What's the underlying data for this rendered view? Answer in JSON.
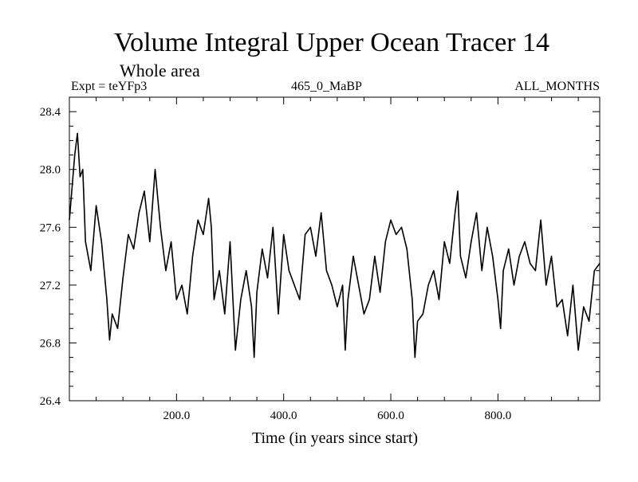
{
  "chart_data": {
    "type": "line",
    "title": "Volume Integral Upper Ocean Tracer 14",
    "subtitle": "Whole area",
    "experiment": "Expt = teYFp3",
    "period": "465_0_MaBP",
    "months": "ALL_MONTHS",
    "xlabel": "Time (in years since start)",
    "ylabel": "",
    "xlim": [
      0,
      990
    ],
    "ylim": [
      26.4,
      28.5
    ],
    "grid": false,
    "legend": "none",
    "x_ticks": [
      200,
      400,
      600,
      800
    ],
    "x_tick_labels": [
      "200.0",
      "400.0",
      "600.0",
      "800.0"
    ],
    "y_ticks": [
      26.4,
      26.8,
      27.2,
      27.6,
      28.0,
      28.4
    ],
    "y_tick_labels": [
      "26.4",
      "26.8",
      "27.2",
      "27.6",
      "28.0",
      "28.4"
    ],
    "series": [
      {
        "name": "Volume integral",
        "x": [
          0,
          10,
          15,
          20,
          25,
          30,
          40,
          50,
          60,
          70,
          75,
          80,
          90,
          100,
          110,
          120,
          130,
          140,
          150,
          160,
          170,
          180,
          190,
          200,
          210,
          220,
          230,
          240,
          250,
          260,
          265,
          270,
          280,
          290,
          300,
          310,
          320,
          330,
          340,
          345,
          350,
          360,
          370,
          380,
          390,
          400,
          410,
          420,
          430,
          440,
          450,
          460,
          470,
          480,
          490,
          500,
          510,
          515,
          520,
          530,
          540,
          550,
          560,
          570,
          580,
          590,
          600,
          610,
          620,
          630,
          640,
          645,
          650,
          660,
          670,
          680,
          690,
          700,
          710,
          720,
          725,
          730,
          740,
          750,
          760,
          770,
          780,
          790,
          800,
          805,
          810,
          820,
          830,
          840,
          850,
          860,
          870,
          880,
          890,
          900,
          910,
          920,
          930,
          940,
          950,
          960,
          970,
          980,
          990
        ],
        "values": [
          27.65,
          28.1,
          28.25,
          27.95,
          28.0,
          27.5,
          27.3,
          27.75,
          27.5,
          27.1,
          26.82,
          27.0,
          26.9,
          27.25,
          27.55,
          27.45,
          27.7,
          27.85,
          27.5,
          28.0,
          27.6,
          27.3,
          27.5,
          27.1,
          27.2,
          27.0,
          27.4,
          27.65,
          27.55,
          27.8,
          27.6,
          27.1,
          27.3,
          27.0,
          27.5,
          26.75,
          27.1,
          27.3,
          27.05,
          26.7,
          27.15,
          27.45,
          27.25,
          27.6,
          27.0,
          27.55,
          27.3,
          27.2,
          27.1,
          27.55,
          27.6,
          27.4,
          27.7,
          27.3,
          27.2,
          27.05,
          27.2,
          26.75,
          27.1,
          27.4,
          27.2,
          27.0,
          27.1,
          27.4,
          27.15,
          27.5,
          27.65,
          27.55,
          27.6,
          27.45,
          27.1,
          26.7,
          26.95,
          27.0,
          27.2,
          27.3,
          27.1,
          27.5,
          27.35,
          27.7,
          27.85,
          27.4,
          27.25,
          27.5,
          27.7,
          27.3,
          27.6,
          27.4,
          27.1,
          26.9,
          27.3,
          27.45,
          27.2,
          27.4,
          27.5,
          27.35,
          27.3,
          27.65,
          27.2,
          27.4,
          27.05,
          27.1,
          26.85,
          27.2,
          26.75,
          27.05,
          26.95,
          27.3,
          27.35
        ]
      }
    ]
  }
}
